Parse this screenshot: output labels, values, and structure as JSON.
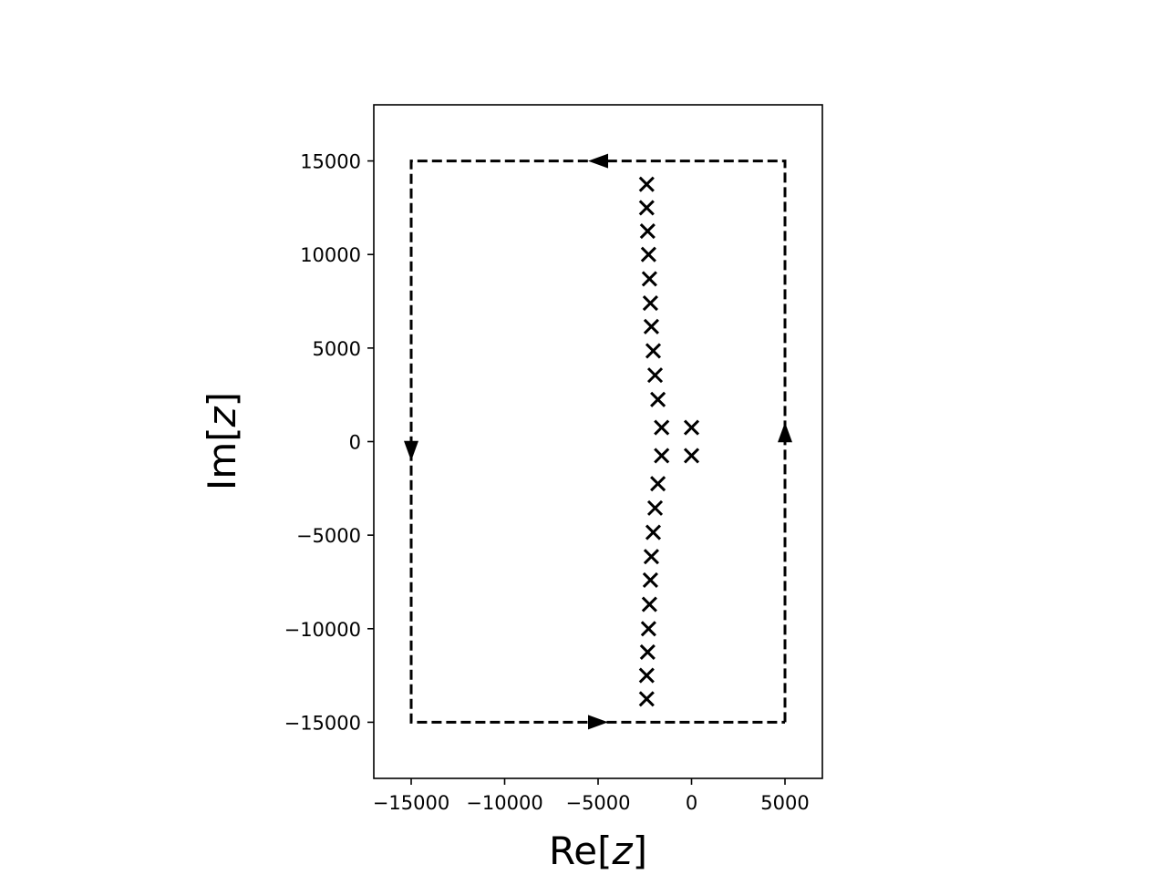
{
  "chart_data": {
    "type": "scatter",
    "title": "",
    "xlabel": {
      "pre": "Re[",
      "var": "z",
      "post": "]"
    },
    "ylabel": {
      "pre": "Im[",
      "var": "z",
      "post": "]"
    },
    "xlim": [
      -17000,
      7000
    ],
    "ylim": [
      -18000,
      18000
    ],
    "xticks": [
      -15000,
      -10000,
      -5000,
      0,
      5000
    ],
    "xtick_labels": [
      "−15000",
      "−10000",
      "−5000",
      "0",
      "5000"
    ],
    "yticks": [
      -15000,
      -10000,
      -5000,
      0,
      5000,
      10000,
      15000
    ],
    "ytick_labels": [
      "−15000",
      "−10000",
      "−5000",
      "0",
      "5000",
      "10000",
      "15000"
    ],
    "grid": false,
    "marker": "x",
    "color": "#000000",
    "poles": [
      {
        "x": 0,
        "y": 750
      },
      {
        "x": 0,
        "y": -750
      },
      {
        "x": -1600,
        "y": 750
      },
      {
        "x": -1600,
        "y": -750
      },
      {
        "x": -1800,
        "y": 2250
      },
      {
        "x": -1800,
        "y": -2250
      },
      {
        "x": -1950,
        "y": 3550
      },
      {
        "x": -1950,
        "y": -3550
      },
      {
        "x": -2050,
        "y": 4850
      },
      {
        "x": -2050,
        "y": -4850
      },
      {
        "x": -2150,
        "y": 6150
      },
      {
        "x": -2150,
        "y": -6150
      },
      {
        "x": -2200,
        "y": 7400
      },
      {
        "x": -2200,
        "y": -7400
      },
      {
        "x": -2250,
        "y": 8700
      },
      {
        "x": -2250,
        "y": -8700
      },
      {
        "x": -2300,
        "y": 10000
      },
      {
        "x": -2300,
        "y": -10000
      },
      {
        "x": -2350,
        "y": 11250
      },
      {
        "x": -2350,
        "y": -11250
      },
      {
        "x": -2400,
        "y": 12500
      },
      {
        "x": -2400,
        "y": -12500
      },
      {
        "x": -2400,
        "y": 13750
      },
      {
        "x": -2400,
        "y": -13750
      }
    ],
    "contour": {
      "style": "dashed",
      "path": [
        [
          5000,
          -15000
        ],
        [
          5000,
          15000
        ],
        [
          -15000,
          15000
        ],
        [
          -15000,
          -15000
        ],
        [
          5000,
          -15000
        ]
      ],
      "arrows": [
        {
          "x": 5000,
          "y": 500,
          "direction": "up"
        },
        {
          "x": -5000,
          "y": 15000,
          "direction": "left"
        },
        {
          "x": -15000,
          "y": -500,
          "direction": "down"
        },
        {
          "x": -5000,
          "y": -15000,
          "direction": "right"
        }
      ]
    }
  }
}
